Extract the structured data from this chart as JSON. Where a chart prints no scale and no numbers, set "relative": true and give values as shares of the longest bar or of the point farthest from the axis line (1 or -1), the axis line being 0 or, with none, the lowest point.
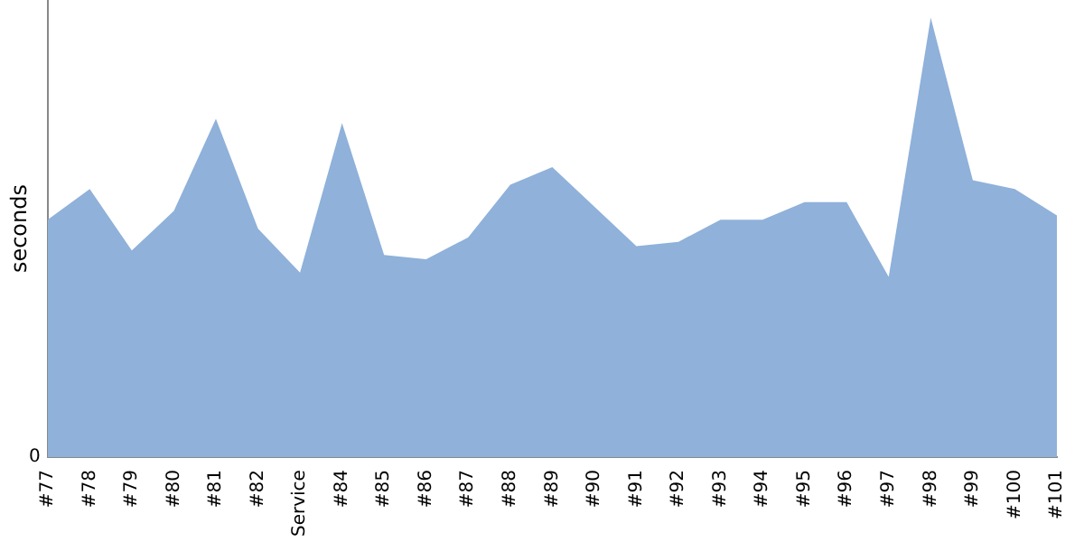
{
  "chart_data": {
    "type": "area",
    "ylabel": "seconds",
    "relative": true,
    "annotations": [
      "0"
    ],
    "grid": false,
    "legend": false,
    "categories": [
      "#77",
      "#78",
      "#79",
      "#80",
      "#81",
      "#82",
      "Service",
      "#84",
      "#85",
      "#86",
      "#87",
      "#88",
      "#89",
      "#90",
      "#91",
      "#92",
      "#93",
      "#94",
      "#95",
      "#96",
      "#97",
      "#98",
      "#99",
      "#100",
      "#101"
    ],
    "series": [
      {
        "color": "#8fb1da",
        "values": [
          0.54,
          0.61,
          0.47,
          0.56,
          0.77,
          0.52,
          0.42,
          0.76,
          0.46,
          0.45,
          0.5,
          0.62,
          0.66,
          0.57,
          0.48,
          0.49,
          0.54,
          0.54,
          0.58,
          0.58,
          0.41,
          1,
          0.63,
          0.61,
          0.55
        ]
      }
    ]
  }
}
